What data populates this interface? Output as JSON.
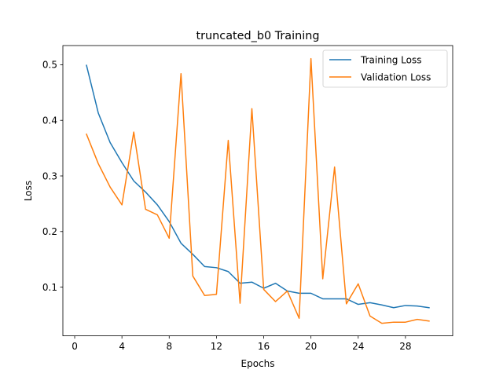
{
  "chart_data": {
    "type": "line",
    "title": "truncated_b0 Training",
    "xlabel": "Epochs",
    "ylabel": "Loss",
    "xlim": [
      -1.0,
      32.0
    ],
    "ylim": [
      0.0124,
      0.5345
    ],
    "xticks": [
      0,
      4,
      8,
      12,
      16,
      20,
      24,
      28
    ],
    "yticks": [
      0.1,
      0.2,
      0.3,
      0.4,
      0.5
    ],
    "ytick_labels": [
      "0.1",
      "0.2",
      "0.3",
      "0.4",
      "0.5"
    ],
    "legend_position": "top-right",
    "x": [
      1,
      2,
      3,
      4,
      5,
      6,
      7,
      8,
      9,
      10,
      11,
      12,
      13,
      14,
      15,
      16,
      17,
      18,
      19,
      20,
      21,
      22,
      23,
      24,
      25,
      26,
      27,
      28,
      29,
      30
    ],
    "series": [
      {
        "name": "Training Loss",
        "color": "#1f77b4",
        "values": [
          0.499,
          0.413,
          0.36,
          0.324,
          0.291,
          0.271,
          0.248,
          0.218,
          0.179,
          0.159,
          0.137,
          0.135,
          0.128,
          0.107,
          0.109,
          0.098,
          0.107,
          0.093,
          0.089,
          0.089,
          0.079,
          0.079,
          0.079,
          0.069,
          0.072,
          0.068,
          0.063,
          0.067,
          0.066,
          0.063
        ]
      },
      {
        "name": "Validation Loss",
        "color": "#ff7f0e",
        "values": [
          0.375,
          0.322,
          0.28,
          0.248,
          0.379,
          0.24,
          0.23,
          0.188,
          0.484,
          0.12,
          0.085,
          0.087,
          0.364,
          0.071,
          0.421,
          0.096,
          0.074,
          0.093,
          0.044,
          0.511,
          0.115,
          0.316,
          0.07,
          0.106,
          0.048,
          0.035,
          0.037,
          0.037,
          0.042,
          0.039
        ]
      }
    ]
  }
}
